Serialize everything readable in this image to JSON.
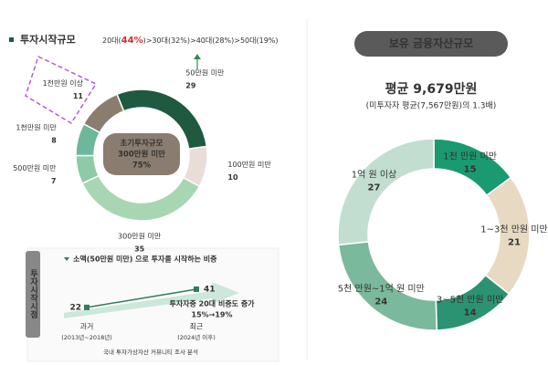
{
  "chart_data": [
    {
      "type": "donut",
      "title": "투자시작규모",
      "subtitle": [
        "20대(",
        "44%",
        ")>30대(32%)>40대(28%)>50대(19%)"
      ],
      "center_text": [
        "초기투자규모",
        "300만원 미만",
        "75%"
      ],
      "categories": [
        "50만원 미만",
        "100만원 미만",
        "300만원 미만",
        "500만원 미만",
        "1천만원 미만",
        "1천만원 이상"
      ],
      "values": [
        29,
        10,
        35,
        7,
        8,
        11
      ],
      "colors": [
        "#1f5a40",
        "#e9ddd8",
        "#a9d6b2",
        "#8ccaa8",
        "#6db79a",
        "#8a7d6f"
      ]
    },
    {
      "type": "line",
      "side_label": "투자시작시점",
      "title": "소액(50만원 미만) 으로 투자를 시작하는 비중",
      "categories": [
        "과거",
        "최근"
      ],
      "category_notes": [
        "(2013년~2018년)",
        "(2024년 이후)"
      ],
      "source": "국내 투자가상자산 커뮤니티 조사 분석",
      "values": [
        22,
        41
      ],
      "color": "#2e7d5b",
      "annotation": [
        "투자자중 20대 비중도 증가",
        "15%→19%"
      ]
    },
    {
      "type": "donut",
      "title": "보유 금융자산규모",
      "subtitle": "평균 9,679만원",
      "note": "(미투자자 평균(7,567만원)의 1.3배)",
      "categories": [
        "1천 만원 미만",
        "1~3천 만원 미만",
        "3~5천 만원 미만",
        "5천 만원~1억 원 미만",
        "1억 원 이상"
      ],
      "values": [
        15,
        21,
        14,
        24,
        27
      ],
      "colors": [
        "#1a9a70",
        "#e8d9c2",
        "#2b9272",
        "#7ab99b",
        "#c2ded1"
      ]
    }
  ]
}
